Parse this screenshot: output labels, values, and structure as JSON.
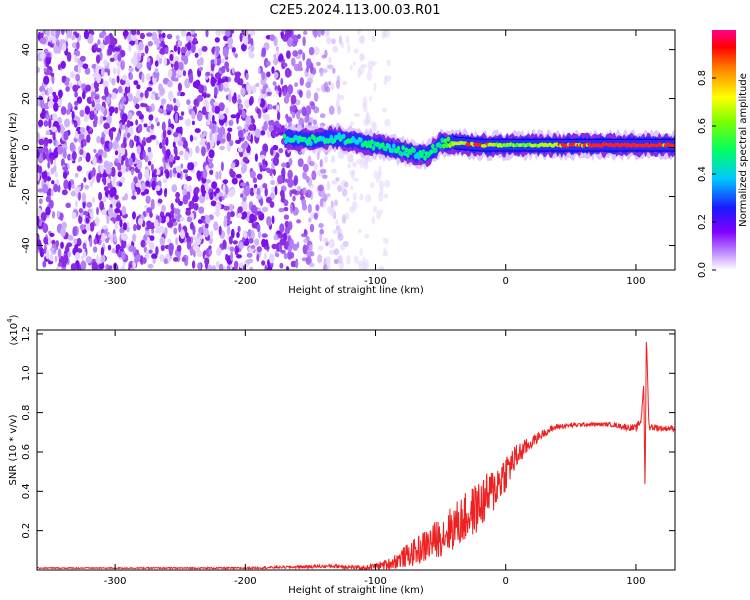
{
  "title": "C2E5.2024.113.00.03.R01",
  "colors": {
    "snr_line": "#ee2020",
    "spectrogram_low": "#8a2be2",
    "spectrogram_mid": "#00d0ff",
    "spectrogram_high": "#ff0000"
  },
  "chart_data": [
    {
      "type": "heatmap",
      "xlabel": "Height of straight line (km)",
      "ylabel": "Frequency (Hz)",
      "xlim": [
        -360,
        130
      ],
      "ylim": [
        -50,
        48
      ],
      "x_ticks": [
        -300,
        -200,
        -100,
        0,
        100
      ],
      "y_ticks": [
        -40,
        -20,
        0,
        20,
        40
      ],
      "colorbar": {
        "label": "Normalized spectral amplitude",
        "range": [
          0.0,
          1.0
        ],
        "ticks": [
          "0.0",
          "0.2",
          "0.4",
          "0.6",
          "0.8"
        ],
        "colormap": "rainbow (white-violet-blue-cyan-green-yellow-red-magenta)"
      },
      "features": [
        {
          "description": "broadband weak noise",
          "x_range": [
            -360,
            -110
          ],
          "freq_range": [
            -50,
            48
          ],
          "amplitude": 0.15
        },
        {
          "description": "signal band ridge",
          "x": [
            -170,
            -150,
            -130,
            -110,
            -90,
            -75,
            -60,
            -50,
            -40,
            -20,
            0,
            40,
            80,
            110,
            130
          ],
          "freq_center": [
            4,
            3,
            4,
            2,
            0,
            -2,
            -3,
            2,
            2,
            1,
            1,
            1,
            1,
            1,
            1
          ],
          "amplitude": [
            0.3,
            0.3,
            0.35,
            0.35,
            0.35,
            0.4,
            0.4,
            0.5,
            0.65,
            0.75,
            0.6,
            0.7,
            0.8,
            0.8,
            0.7
          ]
        }
      ]
    },
    {
      "type": "line",
      "xlabel": "Height of straight line (km)",
      "ylabel": "SNR (10 * v/v)",
      "y_multiplier": "(x10",
      "y_multiplier_exp": "4",
      "y_multiplier_close": ")",
      "xlim": [
        -360,
        130
      ],
      "ylim": [
        0,
        1.22
      ],
      "x_ticks": [
        -300,
        -200,
        -100,
        0,
        100
      ],
      "y_ticks": [
        "0.2",
        "0.4",
        "0.6",
        "0.8",
        "1.0",
        "1.2"
      ],
      "series": [
        {
          "x": [
            -360,
            -300,
            -200,
            -130,
            -110,
            -100,
            -90,
            -80,
            -70,
            -60,
            -50,
            -40,
            -30,
            -20,
            -10,
            0,
            10,
            20,
            30,
            40,
            60,
            80,
            100,
            104,
            106,
            107,
            108,
            110,
            120,
            130
          ],
          "y": [
            0.01,
            0.01,
            0.01,
            0.02,
            0.01,
            0.02,
            0.03,
            0.06,
            0.09,
            0.13,
            0.17,
            0.22,
            0.27,
            0.33,
            0.4,
            0.5,
            0.59,
            0.65,
            0.7,
            0.73,
            0.74,
            0.74,
            0.72,
            0.76,
            0.95,
            0.38,
            1.2,
            0.73,
            0.72,
            0.72
          ],
          "noise_amplitude": [
            0.003,
            0.003,
            0.004,
            0.01,
            0.01,
            0.015,
            0.03,
            0.05,
            0.07,
            0.09,
            0.1,
            0.12,
            0.13,
            0.13,
            0.12,
            0.1,
            0.06,
            0.03,
            0.02,
            0.015,
            0.01,
            0.01,
            0.02,
            0.02,
            0.0,
            0.0,
            0.0,
            0.02,
            0.015,
            0.015
          ]
        }
      ]
    }
  ]
}
